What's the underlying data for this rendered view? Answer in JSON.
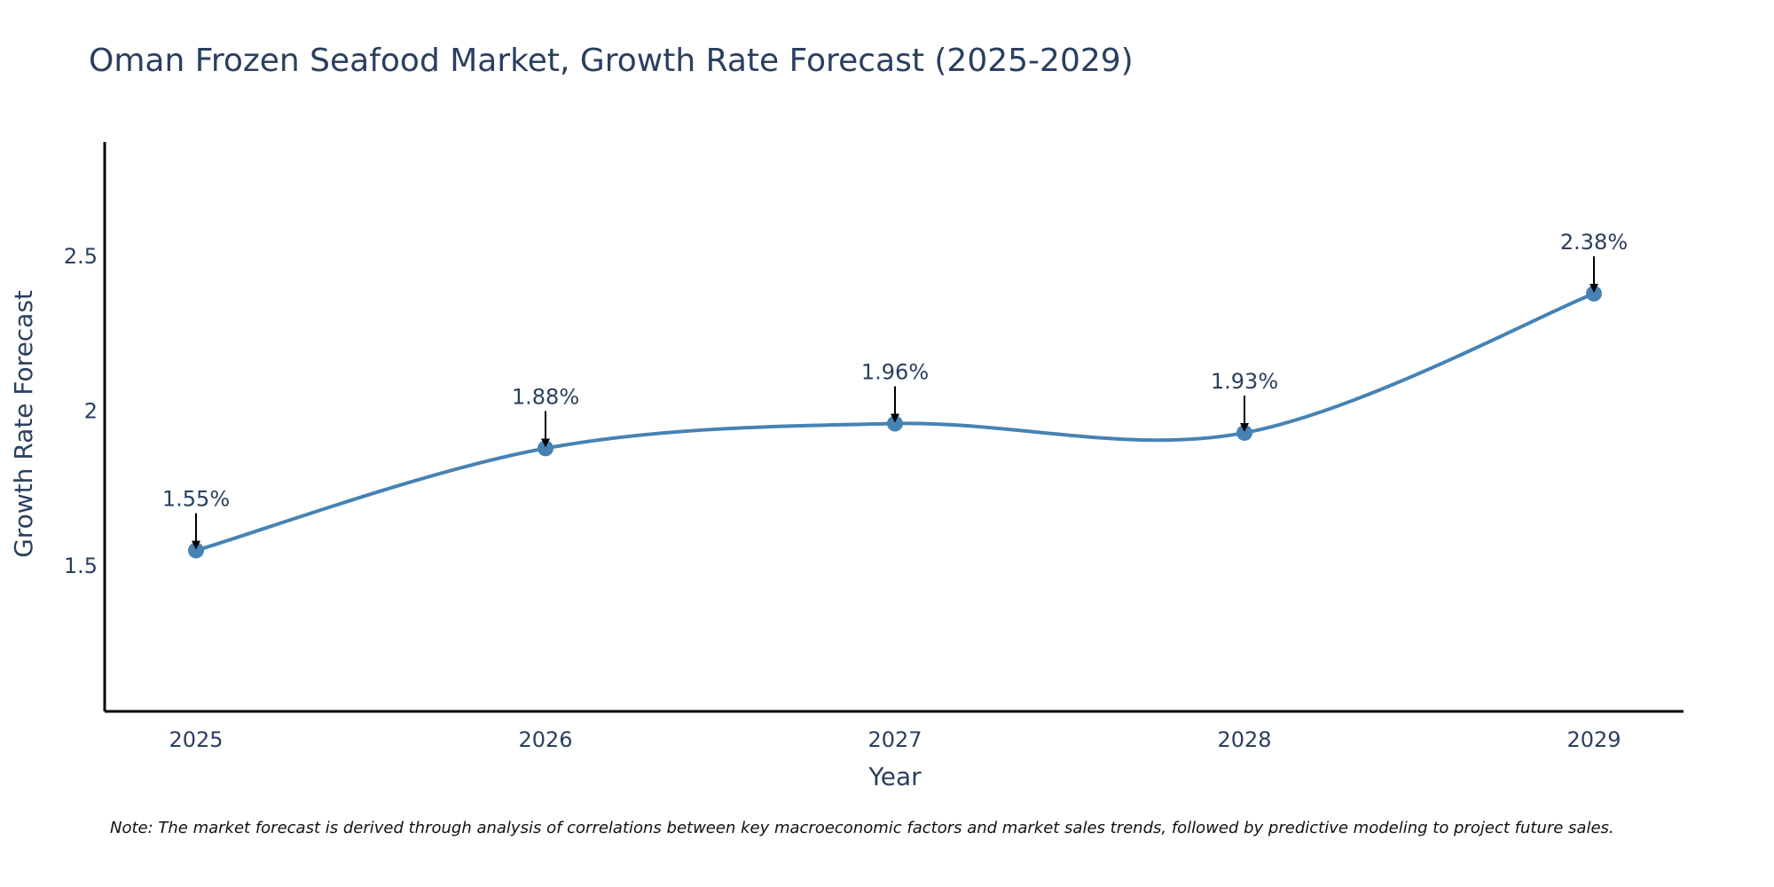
{
  "chart_data": {
    "type": "line",
    "title": "Oman Frozen Seafood Market, Growth Rate Forecast (2025-2029)",
    "xlabel": "Year",
    "ylabel": "Growth Rate Forecast",
    "categories": [
      "2025",
      "2026",
      "2027",
      "2028",
      "2029"
    ],
    "values": [
      1.55,
      1.88,
      1.96,
      1.93,
      2.38
    ],
    "data_labels": [
      "1.55%",
      "1.88%",
      "1.96%",
      "1.93%",
      "2.38%"
    ],
    "y_ticks": [
      1.5,
      2,
      2.5
    ],
    "y_tick_labels": [
      "1.5",
      "2",
      "2.5"
    ],
    "ylim": [
      1.03,
      2.87
    ],
    "grid": false,
    "line_shape": "spline",
    "series_color": "#4682b4",
    "arrow_color": "#000000",
    "note": "Note: The market forecast is derived through analysis of correlations between key macroeconomic factors and market sales trends, followed by predictive modeling to project future sales."
  }
}
